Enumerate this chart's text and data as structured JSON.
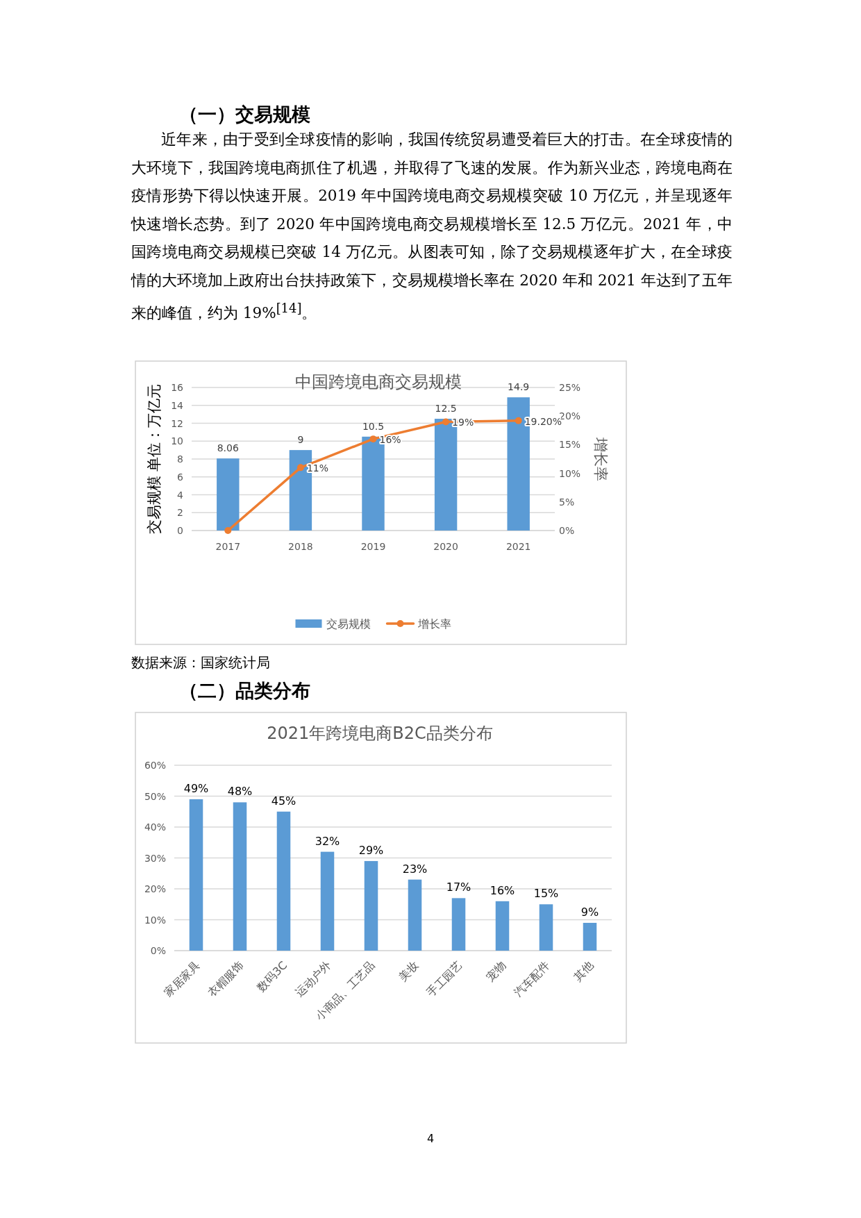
{
  "chart_data": [
    {
      "type": "bar",
      "title": "中国跨境电商交易规模",
      "ylabel": "交易规模 单位：万亿元",
      "y2label": "增长率",
      "categories": [
        "2017",
        "2018",
        "2019",
        "2020",
        "2021"
      ],
      "series": [
        {
          "name": "交易规模",
          "color": "#5b9bd5",
          "values": [
            8.06,
            9,
            10.5,
            12.5,
            14.9
          ],
          "value_labels": [
            "8.06",
            "9",
            "10.5",
            "12.5",
            "14.9"
          ]
        },
        {
          "name": "增长率",
          "type": "line",
          "axis": "y2",
          "color": "#ed7d31",
          "marker": "circle",
          "values": [
            0,
            11,
            16,
            19,
            19.2
          ],
          "value_labels": [
            null,
            "11%",
            "16%",
            "19%",
            "19.20%"
          ]
        }
      ],
      "ylim": [
        0,
        16
      ],
      "yticks": [
        0,
        2,
        4,
        6,
        8,
        10,
        12,
        14,
        16
      ],
      "y2lim": [
        0,
        25
      ],
      "y2ticks": [
        {
          "value": 0,
          "label": "0%"
        },
        {
          "value": 5,
          "label": "5%"
        },
        {
          "value": 10,
          "label": "10%"
        },
        {
          "value": 15,
          "label": "15%"
        },
        {
          "value": 20,
          "label": "20%"
        },
        {
          "value": 25,
          "label": "25%"
        }
      ],
      "grid": "y",
      "legend": "bottom",
      "annotations": [
        "（一）交易规模",
        "近年来，由于受到全球疫情的影响，我国传统贸易遭受着巨大的打击。在全球疫情的大环境下，我国跨境电商抓住了机遇，并取得了飞速的发展。作为新兴业态，跨境电商在疫情形势下得以快速开展。2019 年中国跨境电商交易规模突破 10 万亿元，并呈现逐年快速增长态势。到了 2020 年中国跨境电商交易规模增长至 12.5 万亿元。2021 年，中国跨境电商交易规模已突破 14 万亿元。从图表可知，除了交易规模逐年扩大，在全球疫情的大环境加上政府出台扶持政策下，交易规模增长率在 2020 年和 2021 年达到了五年来的峰值，约为 19%$^{[14]}$。",
        "数据来源：国家统计局"
      ]
    },
    {
      "type": "bar",
      "title": "2021年跨境电商B2C品类分布",
      "categories": [
        "家居家具",
        "衣帽服饰",
        "数码3C",
        "运动户外",
        "小商品、工艺品",
        "美妆",
        "手工园艺",
        "宠物",
        "汽车配件",
        "其他"
      ],
      "values": [
        49,
        48,
        45,
        32,
        29,
        23,
        17,
        16,
        15,
        9
      ],
      "color": "#5b9bd5",
      "value_labels": [
        "49%",
        "48%",
        "45%",
        "32%",
        "29%",
        "23%",
        "17%",
        "16%",
        "15%",
        "9%"
      ],
      "ylim": [
        0,
        60
      ],
      "yticks": [
        {
          "value": 0,
          "label": "0%"
        },
        {
          "value": 10,
          "label": "10%"
        },
        {
          "value": 20,
          "label": "20%"
        },
        {
          "value": 30,
          "label": "30%"
        },
        {
          "value": 40,
          "label": "40%"
        },
        {
          "value": 50,
          "label": "50%"
        },
        {
          "value": 60,
          "label": "60%"
        }
      ],
      "grid": "y",
      "annotations": [
        "（二）品类分布",
        "4"
      ]
    }
  ]
}
